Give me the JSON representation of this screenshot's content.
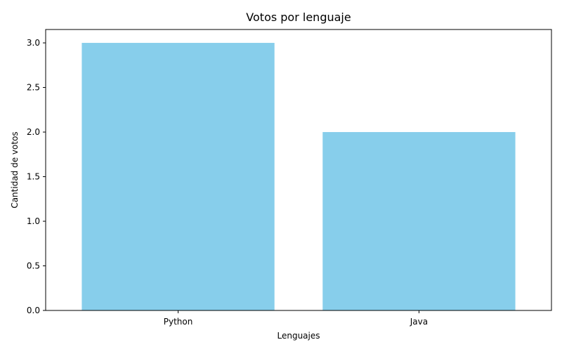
{
  "chart_data": {
    "type": "bar",
    "title": "Votos por lenguaje",
    "xlabel": "Lenguajes",
    "ylabel": "Cantidad de votos",
    "categories": [
      "Python",
      "Java"
    ],
    "values": [
      3,
      2
    ],
    "ylim": [
      0,
      3.15
    ],
    "yticks": [
      0.0,
      0.5,
      1.0,
      1.5,
      2.0,
      2.5,
      3.0
    ],
    "ytick_labels": [
      "0.0",
      "0.5",
      "1.0",
      "1.5",
      "2.0",
      "2.5",
      "3.0"
    ],
    "bar_color": "#87CEEB",
    "grid": false,
    "legend": false
  }
}
